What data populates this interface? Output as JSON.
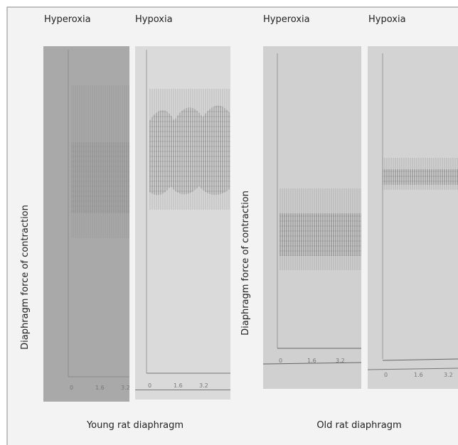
{
  "headers": [
    "Hyperoxia",
    "Hypoxia",
    "Hyperoxia",
    "Hypoxia"
  ],
  "y_axis_labels": [
    "Diaphragm force of contraction",
    "Diaphragm force of contraction"
  ],
  "group_labels": [
    "Young rat diaphragm",
    "Old rat diaphragm"
  ],
  "panels": [
    {
      "x_tick_labels": [
        "0",
        "1.6",
        "3.2"
      ]
    },
    {
      "x_tick_labels": [
        "0",
        "1.6",
        "3.2"
      ]
    },
    {
      "x_tick_labels": [
        "0",
        "1.6",
        "3.2"
      ]
    },
    {
      "x_tick_labels": [
        "0",
        "1.6",
        "3.2"
      ]
    }
  ]
}
